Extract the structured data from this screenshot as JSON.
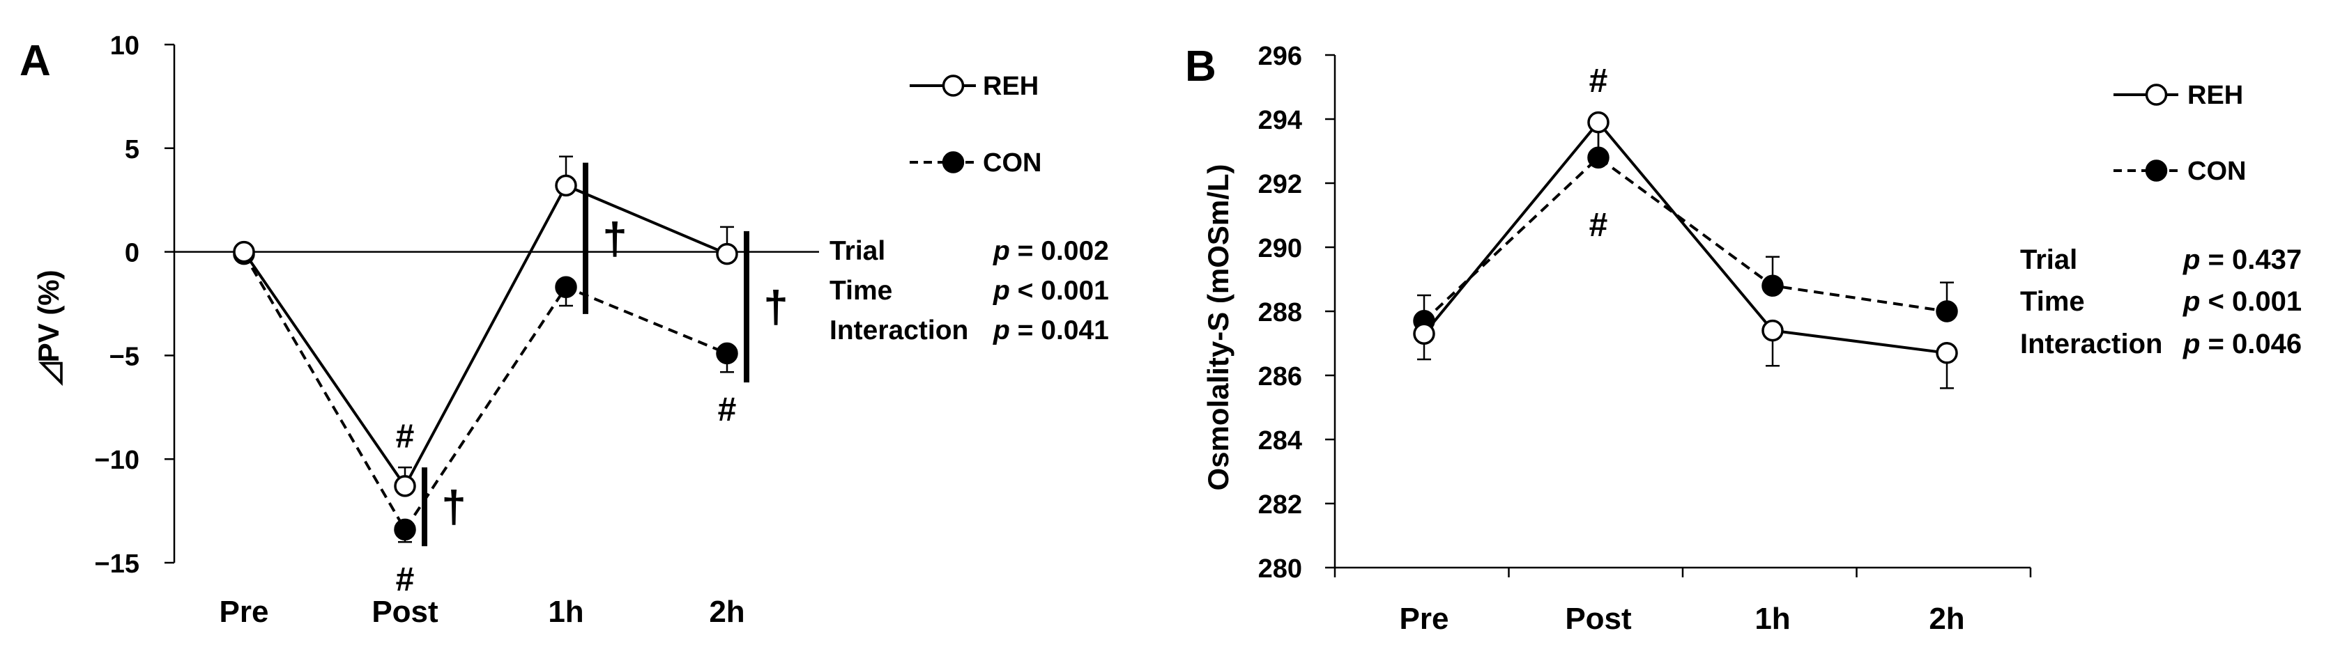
{
  "chart_data": [
    {
      "type": "line",
      "panel_label": "A",
      "ylabel": "◿PV (%)",
      "ylim": [
        -15,
        10
      ],
      "yticks": [
        10,
        5,
        0,
        -5,
        -10,
        -15
      ],
      "categories": [
        "Pre",
        "Post",
        "1h",
        "2h"
      ],
      "series": [
        {
          "name": "REH",
          "marker": "open-circle",
          "line": "solid",
          "values": [
            0,
            -11.3,
            3.2,
            -0.1
          ],
          "err": [
            0,
            0.9,
            1.4,
            1.3
          ]
        },
        {
          "name": "CON",
          "marker": "filled-circle",
          "line": "dashed",
          "values": [
            -0.1,
            -13.4,
            -1.7,
            -4.9
          ],
          "err": [
            0,
            0.6,
            0.9,
            0.9
          ]
        }
      ],
      "annotations": [
        {
          "text": "#",
          "cat": 1,
          "y": -8.9
        },
        {
          "text": "#",
          "cat": 1,
          "y": -15.8
        },
        {
          "text": "#",
          "cat": 3,
          "y": -7.6
        }
      ],
      "significance_bars": [
        {
          "cat": 1,
          "y_from": -10.4,
          "y_to": -14.2,
          "text": "†"
        },
        {
          "cat": 2,
          "y_from": 4.3,
          "y_to": -3.0,
          "text": "†"
        },
        {
          "cat": 3,
          "y_from": 1.0,
          "y_to": -6.3,
          "text": "†"
        }
      ],
      "stats": [
        {
          "label": "Trial",
          "p": "p",
          "value": " = 0.002"
        },
        {
          "label": "Time",
          "p": "p",
          "value": " < 0.001"
        },
        {
          "label": "Interaction",
          "p": "p",
          "value": " = 0.041"
        }
      ],
      "legend_position": "top-right"
    },
    {
      "type": "line",
      "panel_label": "B",
      "ylabel": "Osmolality-S (mOSm/L)",
      "ylim": [
        280,
        296
      ],
      "yticks": [
        296,
        294,
        292,
        290,
        288,
        286,
        284,
        282,
        280
      ],
      "categories": [
        "Pre",
        "Post",
        "1h",
        "2h"
      ],
      "series": [
        {
          "name": "REH",
          "marker": "open-circle",
          "line": "solid",
          "values": [
            287.3,
            293.9,
            287.4,
            286.7
          ],
          "err": [
            0.8,
            1.0,
            1.1,
            1.1
          ]
        },
        {
          "name": "CON",
          "marker": "filled-circle",
          "line": "dashed",
          "values": [
            287.7,
            292.8,
            288.8,
            288.0
          ],
          "err": [
            0.8,
            1.0,
            0.9,
            0.9
          ]
        }
      ],
      "annotations": [
        {
          "text": "#",
          "cat": 1,
          "y": 295.2
        },
        {
          "text": "#",
          "cat": 1,
          "y": 290.7
        }
      ],
      "stats": [
        {
          "label": "Trial",
          "p": "p",
          "value": " = 0.437"
        },
        {
          "label": "Time",
          "p": "p",
          "value": " < 0.001"
        },
        {
          "label": "Interaction",
          "p": "p",
          "value": " = 0.046"
        }
      ],
      "legend_position": "top-right"
    }
  ]
}
